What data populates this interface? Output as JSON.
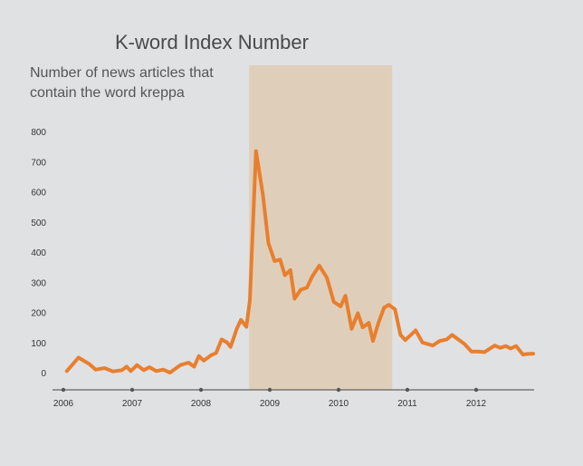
{
  "chart_data": {
    "type": "line",
    "title": "K-word Index Number",
    "subtitle_lines": [
      "Number of news articles that",
      "contain the word kreppa"
    ],
    "y_ticks": [
      "800",
      "700",
      "600",
      "500",
      "400",
      "300",
      "200",
      "100",
      "0"
    ],
    "x_ticks": [
      "2006",
      "2007",
      "2008",
      "2009",
      "2010",
      "2011",
      "2012"
    ],
    "ylim": [
      0,
      800
    ],
    "xlim": [
      2006,
      2012.85
    ],
    "grid": false,
    "legend": "none",
    "shaded_period": [
      2008.7,
      2010.78
    ],
    "series": [
      {
        "x": [
          2006.05,
          2006.22,
          2006.38,
          2006.47,
          2006.6,
          2006.72,
          2006.85,
          2006.92,
          2006.98,
          2007.07,
          2007.17,
          2007.25,
          2007.35,
          2007.45,
          2007.55,
          2007.7,
          2007.82,
          2007.9,
          2007.97,
          2008.04,
          2008.15,
          2008.22,
          2008.3,
          2008.38,
          2008.43,
          2008.52,
          2008.58,
          2008.66,
          2008.71,
          2008.8,
          2008.9,
          2008.98,
          2009.07,
          2009.15,
          2009.22,
          2009.3,
          2009.36,
          2009.45,
          2009.54,
          2009.62,
          2009.72,
          2009.83,
          2009.93,
          2010.03,
          2010.1,
          2010.19,
          2010.28,
          2010.35,
          2010.44,
          2010.5,
          2010.58,
          2010.66,
          2010.73,
          2010.82,
          2010.9,
          2010.97,
          2011.05,
          2011.12,
          2011.22,
          2011.37,
          2011.47,
          2011.57,
          2011.65,
          2011.74,
          2011.83,
          2011.93,
          2012.03,
          2012.12,
          2012.27,
          2012.35,
          2012.43,
          2012.5,
          2012.58,
          2012.68,
          2012.75,
          2012.83
        ],
        "values": [
          5,
          50,
          28,
          10,
          15,
          4,
          8,
          20,
          5,
          25,
          8,
          18,
          5,
          10,
          0,
          25,
          33,
          20,
          55,
          40,
          58,
          65,
          110,
          100,
          85,
          145,
          175,
          152,
          240,
          735,
          590,
          430,
          370,
          375,
          323,
          340,
          245,
          275,
          282,
          320,
          355,
          315,
          235,
          220,
          255,
          145,
          197,
          150,
          165,
          105,
          165,
          215,
          225,
          210,
          125,
          108,
          125,
          140,
          100,
          90,
          105,
          110,
          125,
          110,
          95,
          70,
          70,
          68,
          90,
          82,
          88,
          80,
          88,
          60,
          62,
          63
        ]
      }
    ]
  }
}
